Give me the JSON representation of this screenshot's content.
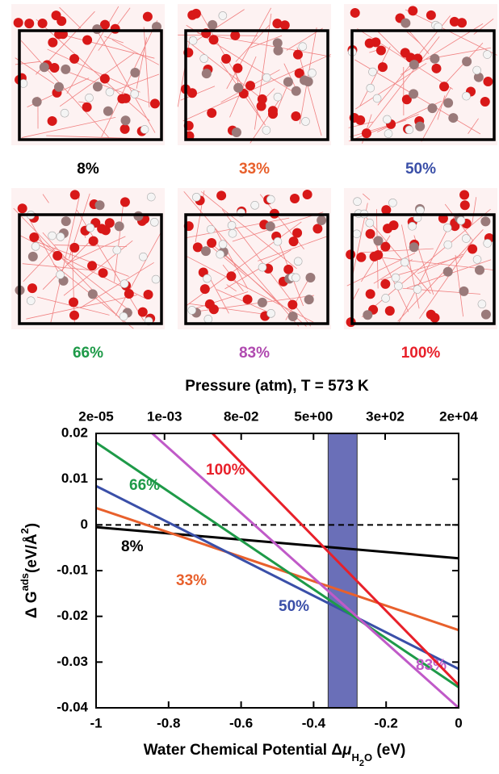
{
  "panels": [
    {
      "label": "8%",
      "color": "#000000"
    },
    {
      "label": "33%",
      "color": "#e8602c"
    },
    {
      "label": "50%",
      "color": "#3a4fa8"
    },
    {
      "label": "66%",
      "color": "#1e9a48"
    },
    {
      "label": "83%",
      "color": "#b04ab0"
    },
    {
      "label": "100%",
      "color": "#e8202a"
    }
  ],
  "chart_data": {
    "type": "line",
    "top_title": "Pressure (atm), T = 573 K",
    "ylabel": {
      "main": "Δ G",
      "sup": "ads",
      "unit": "(eV/Å",
      "unit_sup": "2",
      "close": ")"
    },
    "xlabel": {
      "main": "Water Chemical Potential Δ",
      "mu": "μ",
      "sub1": "H",
      "sub2": "2",
      "sub3": "O",
      "unit": " (eV)"
    },
    "x": [
      -1,
      0
    ],
    "series": [
      {
        "name": "8%",
        "color": "#000000",
        "values": [
          -0.0005,
          -0.0073
        ]
      },
      {
        "name": "33%",
        "color": "#e8602c",
        "values": [
          0.0037,
          -0.023
        ]
      },
      {
        "name": "50%",
        "color": "#3a4fa8",
        "values": [
          0.0085,
          -0.0315
        ]
      },
      {
        "name": "66%",
        "color": "#1e9a48",
        "values": [
          0.018,
          -0.0355
        ]
      },
      {
        "name": "83%",
        "color": "#c05ac8",
        "values": [
          0.031,
          -0.04
        ]
      },
      {
        "name": "100%",
        "color": "#e8202a",
        "values": [
          0.046,
          -0.035
        ]
      }
    ],
    "band": [
      -0.36,
      -0.28
    ],
    "band_color": "#6a6fb8",
    "hline": 0,
    "xlim": [
      -1,
      0
    ],
    "xticks": [
      -1,
      -0.8,
      -0.6,
      -0.4,
      -0.2,
      0
    ],
    "ylim": [
      -0.04,
      0.02
    ],
    "yticks": [
      -0.04,
      -0.03,
      -0.02,
      -0.01,
      0,
      0.01,
      0.02
    ],
    "x2lim": [
      2e-05,
      20000
    ],
    "x2scale": "log",
    "x2ticks": [
      {
        "value": 2e-05,
        "label": "2e-05"
      },
      {
        "value": 0.001,
        "label": "1e-03"
      },
      {
        "value": 0.08,
        "label": "8e-02"
      },
      {
        "value": 5,
        "label": "5e+00"
      },
      {
        "value": 300,
        "label": "3e+02"
      },
      {
        "value": 20000,
        "label": "2e+04"
      }
    ]
  }
}
